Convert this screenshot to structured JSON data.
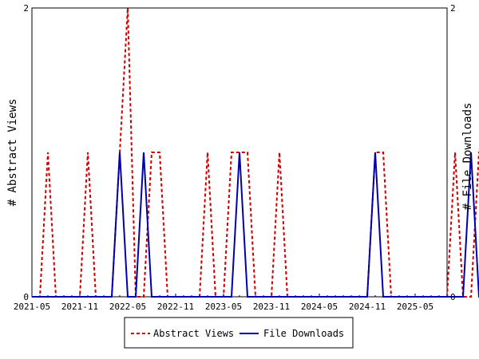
{
  "chart_data": {
    "type": "line",
    "title": "",
    "ylabel_left": "# Abstract Views",
    "ylabel_right": "# File Downloads",
    "x_start": "2021-05",
    "x_tick_labels": [
      "2021-05",
      "2021-11",
      "2022-05",
      "2022-11",
      "2023-05",
      "2023-11",
      "2024-05",
      "2024-11",
      "2025-05"
    ],
    "ylim": [
      0,
      2
    ],
    "y_ticks_left": [
      "0",
      "2"
    ],
    "y_ticks_right": [
      "0",
      "2"
    ],
    "legend_position": "bottom",
    "series": [
      {
        "name": "Abstract Views",
        "color": "#cc0000",
        "dash": true,
        "values": [
          0,
          0,
          1,
          0,
          0,
          0,
          0,
          1,
          0,
          0,
          0,
          1,
          2,
          0,
          0,
          1,
          1,
          0,
          0,
          0,
          0,
          0,
          1,
          0,
          0,
          1,
          1,
          1,
          0,
          0,
          0,
          1,
          0,
          0,
          0,
          0,
          0,
          0,
          0,
          0,
          0,
          0,
          0,
          1,
          1,
          0,
          0,
          0,
          0,
          0,
          0,
          0,
          0,
          1,
          0,
          0,
          1,
          1,
          0,
          0,
          0,
          0,
          0,
          0,
          0,
          0,
          0,
          0,
          0,
          0,
          0,
          0,
          0
        ]
      },
      {
        "name": "File Downloads",
        "color": "#0000aa",
        "dash": false,
        "values": [
          0,
          0,
          0,
          0,
          0,
          0,
          0,
          0,
          0,
          0,
          0,
          1,
          0,
          0,
          1,
          0,
          0,
          0,
          0,
          0,
          0,
          0,
          0,
          0,
          0,
          0,
          1,
          0,
          0,
          0,
          0,
          0,
          0,
          0,
          0,
          0,
          0,
          0,
          0,
          0,
          0,
          0,
          0,
          1,
          0,
          0,
          0,
          0,
          0,
          0,
          0,
          0,
          0,
          0,
          0,
          1,
          0,
          0,
          0,
          0,
          0,
          0,
          0,
          0,
          0,
          0,
          0,
          0,
          0,
          0,
          0,
          0,
          0
        ]
      }
    ]
  }
}
